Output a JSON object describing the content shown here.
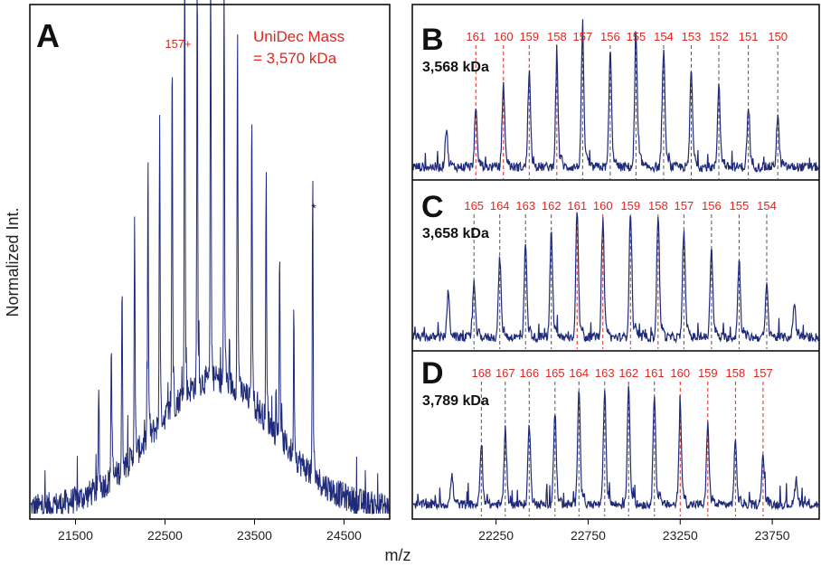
{
  "figure": {
    "ylabel": "Normalized Int.",
    "xlabel": "m/z",
    "colors": {
      "trace": "#1f2b7a",
      "annotation": "#e0261f",
      "guide": "#555555",
      "frame": "#000000"
    }
  },
  "chart_data": [
    {
      "panel": "A",
      "type": "line",
      "xlim": [
        21000,
        25000
      ],
      "xticks": [
        21500,
        22500,
        23500,
        24500
      ],
      "grid": false,
      "annotation": {
        "line1": "UniDec Mass",
        "line2": "= 3,570 kDa"
      },
      "peak_label": "157+",
      "marker_label": "*",
      "peaks": [
        {
          "x": 21760,
          "y": 0.22
        },
        {
          "x": 21900,
          "y": 0.3
        },
        {
          "x": 22020,
          "y": 0.4
        },
        {
          "x": 22160,
          "y": 0.51
        },
        {
          "x": 22310,
          "y": 0.6
        },
        {
          "x": 22440,
          "y": 0.68
        },
        {
          "x": 22580,
          "y": 0.78
        },
        {
          "x": 22720,
          "y": 0.98
        },
        {
          "x": 22860,
          "y": 0.91
        },
        {
          "x": 23010,
          "y": 0.92
        },
        {
          "x": 23160,
          "y": 0.88
        },
        {
          "x": 23310,
          "y": 0.78
        },
        {
          "x": 23470,
          "y": 0.64
        },
        {
          "x": 23630,
          "y": 0.52
        },
        {
          "x": 23780,
          "y": 0.41
        },
        {
          "x": 23940,
          "y": 0.32
        },
        {
          "x": 24150,
          "y": 0.62
        }
      ]
    },
    {
      "panel": "B",
      "type": "line",
      "mass_label": "3,568 kDa",
      "charge_states": [
        {
          "label": "161",
          "x": 22140,
          "red": true
        },
        {
          "label": "160",
          "x": 22290,
          "red": true
        },
        {
          "label": "159",
          "x": 22430,
          "red": true
        },
        {
          "label": "158",
          "x": 22580,
          "red": true
        },
        {
          "label": "157",
          "x": 22720,
          "red": false
        },
        {
          "label": "156",
          "x": 22870,
          "red": false
        },
        {
          "label": "155",
          "x": 23010,
          "red": false
        },
        {
          "label": "154",
          "x": 23160,
          "red": false
        },
        {
          "label": "153",
          "x": 23310,
          "red": false
        },
        {
          "label": "152",
          "x": 23460,
          "red": false
        },
        {
          "label": "151",
          "x": 23620,
          "red": false
        },
        {
          "label": "150",
          "x": 23780,
          "red": false
        }
      ],
      "peaks": [
        {
          "x": 21980,
          "y": 0.28
        },
        {
          "x": 22140,
          "y": 0.42
        },
        {
          "x": 22290,
          "y": 0.62
        },
        {
          "x": 22430,
          "y": 0.72
        },
        {
          "x": 22580,
          "y": 0.78
        },
        {
          "x": 22720,
          "y": 0.98
        },
        {
          "x": 22870,
          "y": 0.86
        },
        {
          "x": 23010,
          "y": 0.96
        },
        {
          "x": 23160,
          "y": 0.88
        },
        {
          "x": 23310,
          "y": 0.72
        },
        {
          "x": 23460,
          "y": 0.62
        },
        {
          "x": 23620,
          "y": 0.42
        },
        {
          "x": 23780,
          "y": 0.38
        }
      ]
    },
    {
      "panel": "C",
      "type": "line",
      "mass_label": "3,658 kDa",
      "charge_states": [
        {
          "label": "165",
          "x": 22130,
          "red": false
        },
        {
          "label": "164",
          "x": 22270,
          "red": false
        },
        {
          "label": "163",
          "x": 22410,
          "red": false
        },
        {
          "label": "162",
          "x": 22550,
          "red": false
        },
        {
          "label": "161",
          "x": 22690,
          "red": true
        },
        {
          "label": "160",
          "x": 22830,
          "red": true
        },
        {
          "label": "159",
          "x": 22980,
          "red": true
        },
        {
          "label": "158",
          "x": 23130,
          "red": true
        },
        {
          "label": "157",
          "x": 23270,
          "red": false
        },
        {
          "label": "156",
          "x": 23420,
          "red": false
        },
        {
          "label": "155",
          "x": 23570,
          "red": false
        },
        {
          "label": "154",
          "x": 23720,
          "red": false
        }
      ],
      "peaks": [
        {
          "x": 21990,
          "y": 0.34
        },
        {
          "x": 22130,
          "y": 0.42
        },
        {
          "x": 22270,
          "y": 0.62
        },
        {
          "x": 22410,
          "y": 0.72
        },
        {
          "x": 22550,
          "y": 0.82
        },
        {
          "x": 22690,
          "y": 0.98
        },
        {
          "x": 22830,
          "y": 0.9
        },
        {
          "x": 22980,
          "y": 0.98
        },
        {
          "x": 23130,
          "y": 0.96
        },
        {
          "x": 23270,
          "y": 0.84
        },
        {
          "x": 23420,
          "y": 0.68
        },
        {
          "x": 23570,
          "y": 0.6
        },
        {
          "x": 23720,
          "y": 0.4
        },
        {
          "x": 23870,
          "y": 0.26
        }
      ]
    },
    {
      "panel": "D",
      "type": "line",
      "xlim": [
        21800,
        24000
      ],
      "xticks": [
        22250,
        22750,
        23250,
        23750
      ],
      "mass_label": "3,789 kDa",
      "charge_states": [
        {
          "label": "168",
          "x": 22170,
          "red": false
        },
        {
          "label": "167",
          "x": 22300,
          "red": false
        },
        {
          "label": "166",
          "x": 22430,
          "red": false
        },
        {
          "label": "165",
          "x": 22570,
          "red": false
        },
        {
          "label": "164",
          "x": 22700,
          "red": false
        },
        {
          "label": "163",
          "x": 22840,
          "red": false
        },
        {
          "label": "162",
          "x": 22970,
          "red": false
        },
        {
          "label": "161",
          "x": 23110,
          "red": false
        },
        {
          "label": "160",
          "x": 23250,
          "red": true
        },
        {
          "label": "159",
          "x": 23400,
          "red": true
        },
        {
          "label": "158",
          "x": 23550,
          "red": true
        },
        {
          "label": "157",
          "x": 23700,
          "red": true
        }
      ],
      "peaks": [
        {
          "x": 22010,
          "y": 0.22
        },
        {
          "x": 22170,
          "y": 0.44
        },
        {
          "x": 22300,
          "y": 0.55
        },
        {
          "x": 22430,
          "y": 0.62
        },
        {
          "x": 22570,
          "y": 0.72
        },
        {
          "x": 22700,
          "y": 0.92
        },
        {
          "x": 22840,
          "y": 0.88
        },
        {
          "x": 22970,
          "y": 0.93
        },
        {
          "x": 23110,
          "y": 0.86
        },
        {
          "x": 23250,
          "y": 0.74
        },
        {
          "x": 23400,
          "y": 0.62
        },
        {
          "x": 23550,
          "y": 0.48
        },
        {
          "x": 23700,
          "y": 0.38
        },
        {
          "x": 23880,
          "y": 0.2
        }
      ]
    }
  ]
}
